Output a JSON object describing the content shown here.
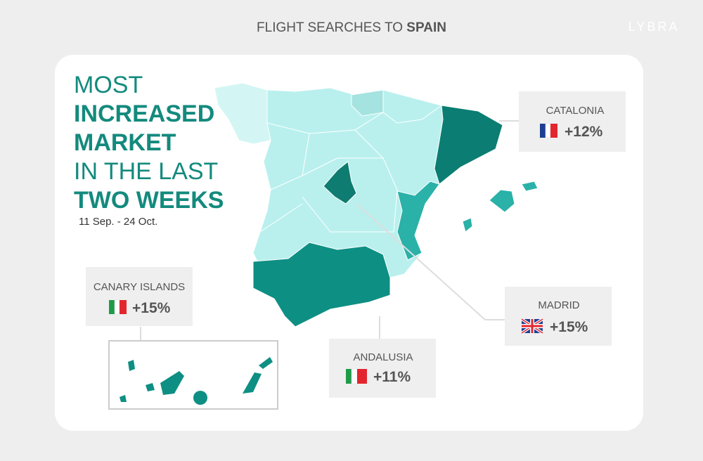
{
  "header": {
    "title": "FLIGHT SEARCHES TO",
    "title_bold": "SPAIN",
    "logo": "LYBRA"
  },
  "headline": {
    "lines": [
      "MOST",
      "INCREASED",
      "MARKET",
      "IN THE LAST",
      "TWO WEEKS"
    ],
    "period": "11 Sep. - 24 Oct."
  },
  "callouts": [
    {
      "region": "CATALONIA",
      "change": "+12%"
    },
    {
      "region": "CANARY ISLANDS",
      "change": "+15%"
    },
    {
      "region": "MADRID",
      "change": "+15%"
    },
    {
      "region": "ANDALUSIA",
      "change": "+11%"
    }
  ]
}
